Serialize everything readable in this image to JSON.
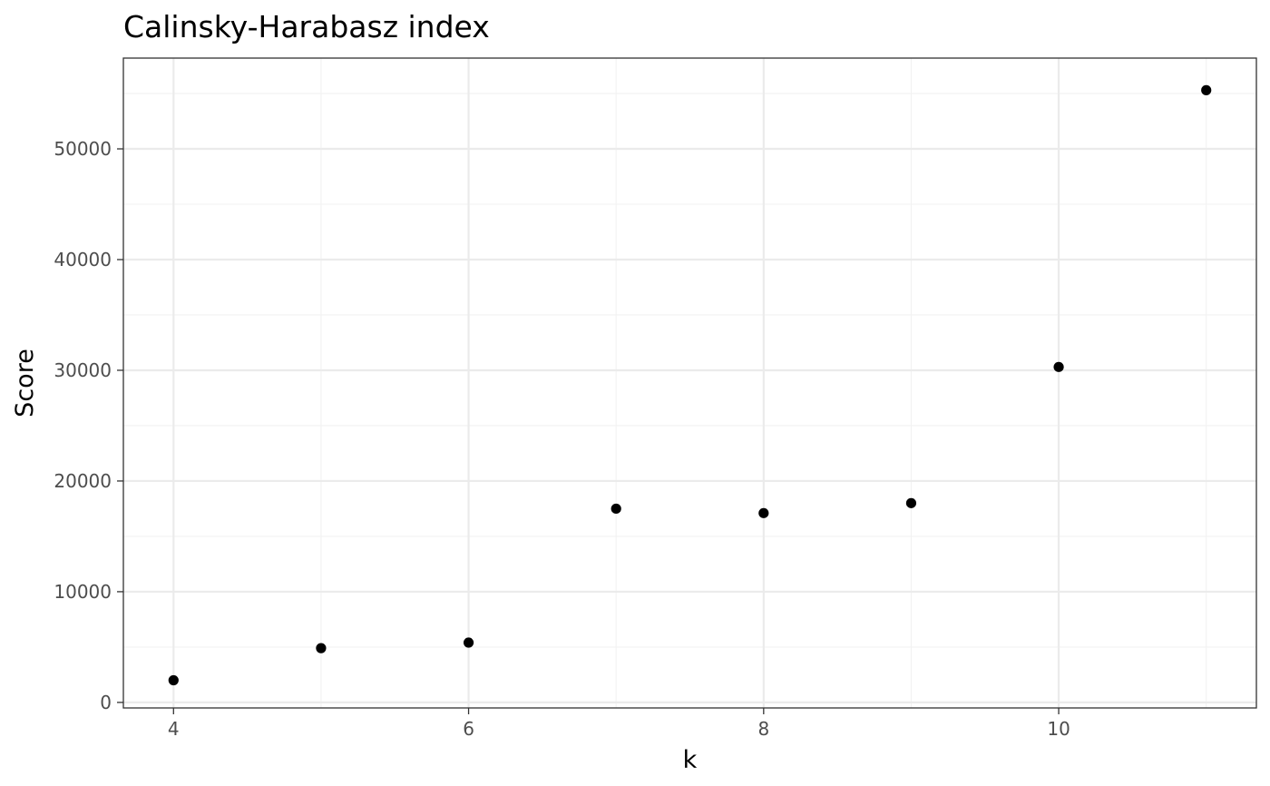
{
  "chart_data": {
    "type": "scatter",
    "title": "Calinsky-Harabasz index",
    "xlabel": "k",
    "ylabel": "Score",
    "x": [
      4,
      5,
      6,
      7,
      8,
      9,
      10,
      11
    ],
    "y": [
      2000,
      4900,
      5400,
      17500,
      17100,
      18000,
      30300,
      55300
    ],
    "xlim": [
      3.66,
      11.34
    ],
    "ylim": [
      -500,
      58200
    ],
    "xticks": [
      4,
      6,
      8,
      10
    ],
    "xtick_labels": [
      "4",
      "6",
      "8",
      "10"
    ],
    "yticks": [
      0,
      10000,
      20000,
      30000,
      40000,
      50000
    ],
    "ytick_labels": [
      "0",
      "10000",
      "20000",
      "30000",
      "40000",
      "50000"
    ],
    "grid": true,
    "theme": "bw",
    "colors": {
      "point": "#000000",
      "panel_border": "#333333",
      "grid_major": "#ebebeb",
      "grid_minor": "#f2f2f2",
      "tick_text": "#4d4d4d"
    }
  }
}
